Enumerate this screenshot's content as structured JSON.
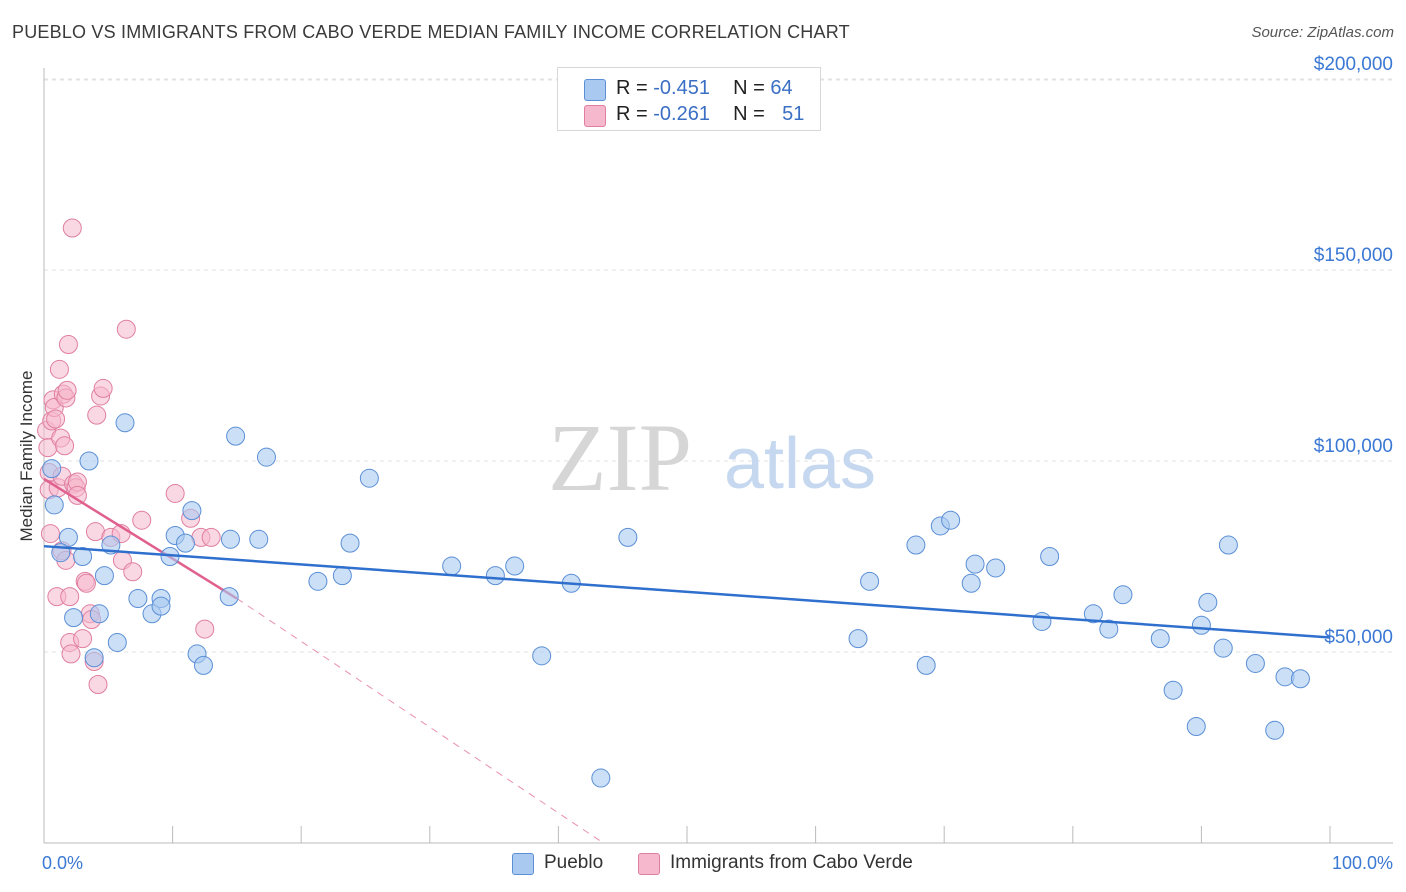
{
  "title": "PUEBLO VS IMMIGRANTS FROM CABO VERDE MEDIAN FAMILY INCOME CORRELATION CHART",
  "source": "Source: ZipAtlas.com",
  "watermark": {
    "zip": "ZIP",
    "atlas": "atlas"
  },
  "legend": {
    "pueblo": {
      "r_label": "R =",
      "r_value": "-0.451",
      "n_label": "N =",
      "n_value": "64"
    },
    "cabo": {
      "r_label": "R =",
      "r_value": "-0.261",
      "n_label": "N =",
      "n_value": "51"
    }
  },
  "bottom_legend": {
    "pueblo": "Pueblo",
    "cabo": "Immigrants from Cabo Verde"
  },
  "x_axis": {
    "min_label": "0.0%",
    "max_label": "100.0%"
  },
  "colors": {
    "pueblo_fill": "#a9c9f0",
    "pueblo_stroke": "#5b8fd6",
    "pueblo_line": "#2f6fcd",
    "cabo_fill": "#f5b8cc",
    "cabo_stroke": "#e07fa0",
    "cabo_line": "#e0608e",
    "axis_label": "#3a78d4",
    "grid": "#e2e2e2"
  },
  "chart_data": {
    "type": "scatter",
    "title": "PUEBLO VS IMMIGRANTS FROM CABO VERDE MEDIAN FAMILY INCOME CORRELATION CHART",
    "xlabel": "",
    "ylabel": "Median Family Income",
    "xlim": [
      0,
      100
    ],
    "ylim": [
      0,
      205000
    ],
    "y_ticks": [
      50000,
      100000,
      150000,
      200000
    ],
    "y_tick_labels": [
      "$50,000",
      "$100,000",
      "$150,000",
      "$200,000"
    ],
    "series": [
      {
        "name": "Pueblo",
        "r": -0.451,
        "n": 64,
        "trend": {
          "x0": 0,
          "y0": 77700,
          "x1": 100,
          "y1": 53800
        },
        "points": [
          [
            0.6,
            98000
          ],
          [
            0.8,
            88500
          ],
          [
            1.9,
            80000
          ],
          [
            1.3,
            76000
          ],
          [
            2.3,
            59000
          ],
          [
            3.0,
            75000
          ],
          [
            3.5,
            100000
          ],
          [
            3.9,
            48500
          ],
          [
            4.3,
            60000
          ],
          [
            4.7,
            70000
          ],
          [
            5.2,
            78000
          ],
          [
            5.7,
            52500
          ],
          [
            6.3,
            110000
          ],
          [
            7.3,
            64000
          ],
          [
            8.4,
            60000
          ],
          [
            9.1,
            64000
          ],
          [
            9.1,
            62000
          ],
          [
            9.8,
            75000
          ],
          [
            10.2,
            80500
          ],
          [
            11.0,
            78500
          ],
          [
            11.5,
            87000
          ],
          [
            11.9,
            49500
          ],
          [
            12.4,
            46500
          ],
          [
            14.4,
            64500
          ],
          [
            14.5,
            79500
          ],
          [
            14.9,
            106500
          ],
          [
            16.7,
            79500
          ],
          [
            17.3,
            101000
          ],
          [
            21.3,
            68500
          ],
          [
            23.2,
            70000
          ],
          [
            23.8,
            78500
          ],
          [
            25.3,
            95500
          ],
          [
            31.7,
            72500
          ],
          [
            35.1,
            70000
          ],
          [
            36.6,
            72500
          ],
          [
            38.7,
            49000
          ],
          [
            41.0,
            68000
          ],
          [
            43.3,
            17000
          ],
          [
            45.4,
            80000
          ],
          [
            63.3,
            53500
          ],
          [
            64.2,
            68500
          ],
          [
            67.8,
            78000
          ],
          [
            68.6,
            46500
          ],
          [
            69.7,
            83000
          ],
          [
            70.5,
            84500
          ],
          [
            72.1,
            68000
          ],
          [
            72.4,
            73000
          ],
          [
            74.0,
            72000
          ],
          [
            77.6,
            58000
          ],
          [
            78.2,
            75000
          ],
          [
            81.6,
            60000
          ],
          [
            82.8,
            56000
          ],
          [
            83.9,
            65000
          ],
          [
            86.8,
            53500
          ],
          [
            87.8,
            40000
          ],
          [
            89.6,
            30500
          ],
          [
            90.0,
            57000
          ],
          [
            90.5,
            63000
          ],
          [
            91.7,
            51000
          ],
          [
            92.1,
            78000
          ],
          [
            94.2,
            47000
          ],
          [
            95.7,
            29500
          ],
          [
            96.5,
            43500
          ],
          [
            97.7,
            43000
          ]
        ]
      },
      {
        "name": "Immigrants from Cabo Verde",
        "r": -0.261,
        "n": 51,
        "trend": {
          "x0": 0,
          "y0": 95300,
          "x1": 15,
          "y1": 64000
        },
        "trend_extension": {
          "x0": 15,
          "y0": 64000,
          "x1": 43.5,
          "y1": 0
        },
        "points": [
          [
            0.2,
            108000
          ],
          [
            0.3,
            103500
          ],
          [
            0.4,
            97000
          ],
          [
            0.4,
            92500
          ],
          [
            0.5,
            81000
          ],
          [
            0.6,
            110500
          ],
          [
            0.7,
            116000
          ],
          [
            0.8,
            114000
          ],
          [
            0.9,
            111000
          ],
          [
            1.0,
            64500
          ],
          [
            1.1,
            93000
          ],
          [
            1.2,
            124000
          ],
          [
            1.3,
            106000
          ],
          [
            1.4,
            96000
          ],
          [
            1.4,
            76500
          ],
          [
            1.5,
            117500
          ],
          [
            1.6,
            104000
          ],
          [
            1.7,
            74000
          ],
          [
            1.7,
            116500
          ],
          [
            1.8,
            118500
          ],
          [
            1.9,
            130500
          ],
          [
            2.0,
            64500
          ],
          [
            2.0,
            52500
          ],
          [
            2.1,
            49500
          ],
          [
            2.2,
            161000
          ],
          [
            2.3,
            94000
          ],
          [
            2.5,
            93000
          ],
          [
            2.6,
            94500
          ],
          [
            2.6,
            91000
          ],
          [
            3.0,
            53500
          ],
          [
            3.2,
            68500
          ],
          [
            3.3,
            68000
          ],
          [
            3.6,
            60000
          ],
          [
            3.7,
            58500
          ],
          [
            3.9,
            47500
          ],
          [
            4.0,
            81500
          ],
          [
            4.1,
            112000
          ],
          [
            4.2,
            41500
          ],
          [
            4.4,
            117000
          ],
          [
            4.6,
            119000
          ],
          [
            5.2,
            80000
          ],
          [
            6.0,
            81000
          ],
          [
            6.1,
            74000
          ],
          [
            6.4,
            134500
          ],
          [
            6.9,
            71000
          ],
          [
            7.6,
            84500
          ],
          [
            10.2,
            91500
          ],
          [
            11.4,
            85000
          ],
          [
            12.2,
            80000
          ],
          [
            12.5,
            56000
          ],
          [
            13.0,
            80000
          ]
        ]
      }
    ]
  }
}
